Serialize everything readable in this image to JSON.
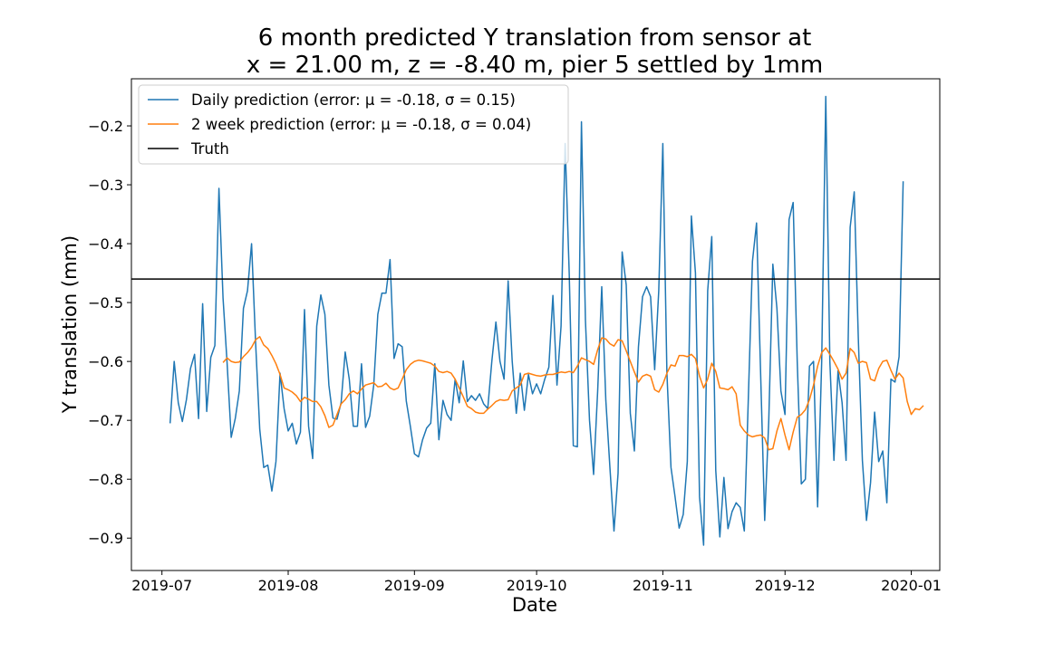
{
  "chart_data": {
    "type": "line",
    "title_line1": "6 month predicted Y translation from sensor at",
    "title_line2": "x = 21.00 m, z = -8.40 m, pier 5 settled by 1mm",
    "xlabel": "Date",
    "ylabel": "Y translation (mm)",
    "x_range_days": [
      -7.5,
      191
    ],
    "ylim": [
      -0.955,
      -0.12
    ],
    "x_ticks": [
      {
        "day": 0,
        "label": "2019-07"
      },
      {
        "day": 31,
        "label": "2019-08"
      },
      {
        "day": 62,
        "label": "2019-09"
      },
      {
        "day": 92,
        "label": "2019-10"
      },
      {
        "day": 123,
        "label": "2019-11"
      },
      {
        "day": 153,
        "label": "2019-12"
      },
      {
        "day": 184,
        "label": "2020-01"
      }
    ],
    "y_ticks": [
      {
        "value": -0.2,
        "label": "−0.2"
      },
      {
        "value": -0.3,
        "label": "−0.3"
      },
      {
        "value": -0.4,
        "label": "−0.4"
      },
      {
        "value": -0.5,
        "label": "−0.5"
      },
      {
        "value": -0.6,
        "label": "−0.6"
      },
      {
        "value": -0.7,
        "label": "−0.7"
      },
      {
        "value": -0.8,
        "label": "−0.8"
      },
      {
        "value": -0.9,
        "label": "−0.9"
      }
    ],
    "truth": {
      "name": "Truth",
      "value": -0.46,
      "color": "#000000"
    },
    "series": [
      {
        "name": "Daily prediction (error: μ = -0.18, σ = 0.15)",
        "color": "#1f77b4",
        "start_day": 2,
        "values": [
          -0.705,
          -0.6,
          -0.67,
          -0.702,
          -0.665,
          -0.612,
          -0.588,
          -0.697,
          -0.502,
          -0.685,
          -0.593,
          -0.573,
          -0.306,
          -0.492,
          -0.603,
          -0.729,
          -0.697,
          -0.65,
          -0.51,
          -0.48,
          -0.4,
          -0.57,
          -0.715,
          -0.78,
          -0.776,
          -0.82,
          -0.77,
          -0.62,
          -0.68,
          -0.718,
          -0.705,
          -0.74,
          -0.72,
          -0.512,
          -0.71,
          -0.765,
          -0.54,
          -0.487,
          -0.52,
          -0.64,
          -0.696,
          -0.698,
          -0.67,
          -0.584,
          -0.63,
          -0.71,
          -0.71,
          -0.604,
          -0.712,
          -0.693,
          -0.64,
          -0.52,
          -0.484,
          -0.484,
          -0.427,
          -0.595,
          -0.57,
          -0.575,
          -0.667,
          -0.71,
          -0.757,
          -0.762,
          -0.733,
          -0.713,
          -0.705,
          -0.604,
          -0.733,
          -0.666,
          -0.69,
          -0.7,
          -0.63,
          -0.67,
          -0.599,
          -0.668,
          -0.658,
          -0.666,
          -0.655,
          -0.672,
          -0.68,
          -0.6,
          -0.533,
          -0.6,
          -0.63,
          -0.463,
          -0.6,
          -0.688,
          -0.62,
          -0.683,
          -0.622,
          -0.655,
          -0.638,
          -0.655,
          -0.63,
          -0.61,
          -0.488,
          -0.64,
          -0.54,
          -0.23,
          -0.45,
          -0.743,
          -0.745,
          -0.193,
          -0.53,
          -0.7,
          -0.792,
          -0.65,
          -0.473,
          -0.666,
          -0.78,
          -0.888,
          -0.79,
          -0.414,
          -0.47,
          -0.688,
          -0.752,
          -0.575,
          -0.49,
          -0.473,
          -0.49,
          -0.614,
          -0.48,
          -0.23,
          -0.62,
          -0.78,
          -0.83,
          -0.883,
          -0.86,
          -0.77,
          -0.353,
          -0.45,
          -0.83,
          -0.912,
          -0.48,
          -0.388,
          -0.785,
          -0.898,
          -0.797,
          -0.884,
          -0.855,
          -0.84,
          -0.848,
          -0.888,
          -0.66,
          -0.43,
          -0.365,
          -0.62,
          -0.87,
          -0.7,
          -0.435,
          -0.51,
          -0.65,
          -0.69,
          -0.359,
          -0.33,
          -0.6,
          -0.808,
          -0.8,
          -0.608,
          -0.6,
          -0.847,
          -0.6,
          -0.15,
          -0.6,
          -0.768,
          -0.616,
          -0.67,
          -0.768,
          -0.372,
          -0.312,
          -0.56,
          -0.768,
          -0.87,
          -0.806,
          -0.686,
          -0.77,
          -0.752,
          -0.84,
          -0.63,
          -0.635,
          -0.592,
          -0.294
        ]
      },
      {
        "name": "2 week prediction (error: μ = -0.18, σ = 0.04)",
        "color": "#ff7f0e",
        "start_day": 15,
        "values": [
          -0.602,
          -0.594,
          -0.6,
          -0.602,
          -0.601,
          -0.592,
          -0.585,
          -0.576,
          -0.563,
          -0.558,
          -0.572,
          -0.578,
          -0.59,
          -0.604,
          -0.622,
          -0.645,
          -0.648,
          -0.652,
          -0.658,
          -0.668,
          -0.661,
          -0.664,
          -0.668,
          -0.668,
          -0.677,
          -0.692,
          -0.712,
          -0.708,
          -0.69,
          -0.672,
          -0.665,
          -0.655,
          -0.65,
          -0.655,
          -0.647,
          -0.64,
          -0.638,
          -0.636,
          -0.643,
          -0.642,
          -0.637,
          -0.645,
          -0.648,
          -0.645,
          -0.63,
          -0.614,
          -0.605,
          -0.6,
          -0.598,
          -0.599,
          -0.601,
          -0.603,
          -0.608,
          -0.617,
          -0.619,
          -0.617,
          -0.62,
          -0.63,
          -0.645,
          -0.66,
          -0.676,
          -0.68,
          -0.686,
          -0.688,
          -0.688,
          -0.681,
          -0.675,
          -0.668,
          -0.665,
          -0.666,
          -0.665,
          -0.65,
          -0.645,
          -0.64,
          -0.622,
          -0.62,
          -0.622,
          -0.624,
          -0.625,
          -0.623,
          -0.622,
          -0.622,
          -0.62,
          -0.618,
          -0.619,
          -0.617,
          -0.619,
          -0.608,
          -0.594,
          -0.597,
          -0.6,
          -0.605,
          -0.58,
          -0.56,
          -0.562,
          -0.57,
          -0.574,
          -0.563,
          -0.565,
          -0.582,
          -0.6,
          -0.618,
          -0.635,
          -0.625,
          -0.622,
          -0.625,
          -0.648,
          -0.652,
          -0.639,
          -0.62,
          -0.606,
          -0.608,
          -0.59,
          -0.59,
          -0.592,
          -0.588,
          -0.595,
          -0.625,
          -0.645,
          -0.63,
          -0.603,
          -0.617,
          -0.645,
          -0.646,
          -0.648,
          -0.643,
          -0.655,
          -0.708,
          -0.718,
          -0.725,
          -0.728,
          -0.726,
          -0.725,
          -0.73,
          -0.75,
          -0.748,
          -0.718,
          -0.697,
          -0.725,
          -0.75,
          -0.72,
          -0.695,
          -0.69,
          -0.682,
          -0.665,
          -0.64,
          -0.608,
          -0.585,
          -0.577,
          -0.588,
          -0.6,
          -0.613,
          -0.63,
          -0.62,
          -0.578,
          -0.585,
          -0.603,
          -0.6,
          -0.602,
          -0.63,
          -0.633,
          -0.612,
          -0.6,
          -0.598,
          -0.615,
          -0.63,
          -0.62,
          -0.628,
          -0.668,
          -0.69,
          -0.68,
          -0.682,
          -0.675
        ]
      }
    ],
    "legend_position": "top-left"
  }
}
